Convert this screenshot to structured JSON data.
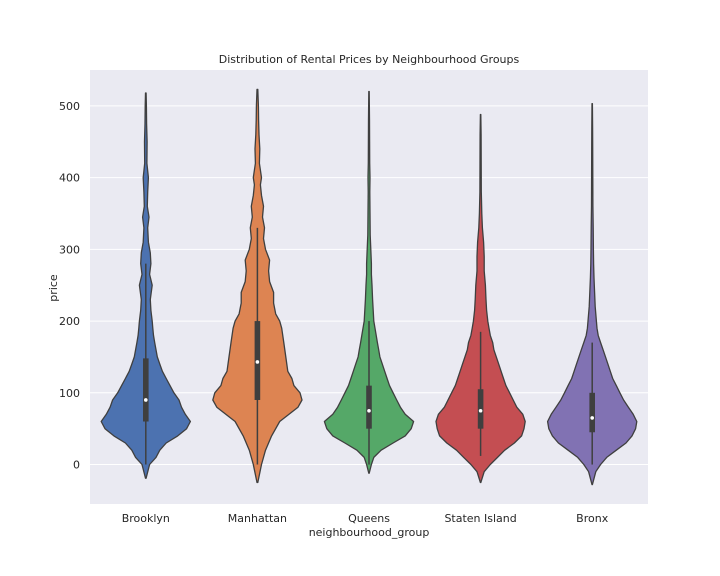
{
  "chart_data": {
    "type": "violin",
    "title": "Distribution of Rental Prices by Neighbourhood Groups",
    "xlabel": "neighbourhood_group",
    "ylabel": "price",
    "ylim": [
      -55,
      550
    ],
    "yticks": [
      0,
      100,
      200,
      300,
      400,
      500
    ],
    "grid": true,
    "categories": [
      "Brooklyn",
      "Manhattan",
      "Queens",
      "Staten Island",
      "Bronx"
    ],
    "colors": [
      "#4c72b0",
      "#dd8452",
      "#55a868",
      "#c44e52",
      "#8172b3"
    ],
    "violins": [
      {
        "name": "Brooklyn",
        "min": -19,
        "max": 518,
        "q1": 60,
        "median": 90,
        "q3": 148,
        "whisker_low": 0,
        "whisker_high": 280,
        "density": [
          [
            -19,
            0.2
          ],
          [
            0,
            3
          ],
          [
            10,
            8
          ],
          [
            20,
            11
          ],
          [
            30,
            16
          ],
          [
            40,
            25
          ],
          [
            50,
            32
          ],
          [
            60,
            35
          ],
          [
            70,
            31
          ],
          [
            80,
            28
          ],
          [
            90,
            26
          ],
          [
            100,
            22
          ],
          [
            110,
            19
          ],
          [
            120,
            16
          ],
          [
            130,
            13
          ],
          [
            140,
            11
          ],
          [
            150,
            9
          ],
          [
            160,
            8
          ],
          [
            170,
            7
          ],
          [
            180,
            6
          ],
          [
            190,
            5.5
          ],
          [
            200,
            5
          ],
          [
            215,
            4
          ],
          [
            230,
            3.5
          ],
          [
            250,
            5
          ],
          [
            265,
            3
          ],
          [
            280,
            4
          ],
          [
            295,
            3.5
          ],
          [
            310,
            2
          ],
          [
            330,
            1.5
          ],
          [
            345,
            2.5
          ],
          [
            360,
            1.2
          ],
          [
            380,
            1.5
          ],
          [
            400,
            2
          ],
          [
            420,
            0.9
          ],
          [
            450,
            1
          ],
          [
            475,
            0.6
          ],
          [
            500,
            0.5
          ],
          [
            518,
            0.2
          ]
        ]
      },
      {
        "name": "Manhattan",
        "min": -25,
        "max": 523,
        "q1": 90,
        "median": 143,
        "q3": 200,
        "whisker_low": 0,
        "whisker_high": 330,
        "density": [
          [
            -25,
            0.2
          ],
          [
            0,
            2
          ],
          [
            20,
            4
          ],
          [
            40,
            7
          ],
          [
            60,
            11
          ],
          [
            80,
            20
          ],
          [
            90,
            22
          ],
          [
            100,
            21
          ],
          [
            110,
            18
          ],
          [
            120,
            17
          ],
          [
            130,
            15
          ],
          [
            150,
            14
          ],
          [
            170,
            13
          ],
          [
            190,
            12
          ],
          [
            200,
            11
          ],
          [
            210,
            9
          ],
          [
            225,
            8
          ],
          [
            240,
            8
          ],
          [
            255,
            6
          ],
          [
            270,
            5.5
          ],
          [
            285,
            6
          ],
          [
            300,
            4
          ],
          [
            315,
            3
          ],
          [
            330,
            3.5
          ],
          [
            345,
            2.5
          ],
          [
            360,
            3
          ],
          [
            375,
            2
          ],
          [
            390,
            1.5
          ],
          [
            400,
            2
          ],
          [
            420,
            1
          ],
          [
            440,
            1.2
          ],
          [
            460,
            0.8
          ],
          [
            480,
            0.6
          ],
          [
            500,
            0.5
          ],
          [
            523,
            0.2
          ]
        ]
      },
      {
        "name": "Queens",
        "min": -12,
        "max": 520,
        "q1": 50,
        "median": 75,
        "q3": 110,
        "whisker_low": 0,
        "whisker_high": 200,
        "density": [
          [
            -12,
            0.2
          ],
          [
            0,
            2
          ],
          [
            10,
            4
          ],
          [
            20,
            10
          ],
          [
            30,
            20
          ],
          [
            40,
            30
          ],
          [
            50,
            35
          ],
          [
            60,
            37
          ],
          [
            70,
            30
          ],
          [
            80,
            26
          ],
          [
            90,
            23
          ],
          [
            100,
            20
          ],
          [
            110,
            17
          ],
          [
            120,
            15
          ],
          [
            130,
            13
          ],
          [
            140,
            11
          ],
          [
            150,
            9
          ],
          [
            160,
            8
          ],
          [
            170,
            7
          ],
          [
            180,
            6
          ],
          [
            190,
            5
          ],
          [
            200,
            4
          ],
          [
            215,
            3.5
          ],
          [
            230,
            3
          ],
          [
            250,
            2.5
          ],
          [
            265,
            2
          ],
          [
            280,
            2
          ],
          [
            300,
            1.5
          ],
          [
            320,
            1
          ],
          [
            350,
            0.8
          ],
          [
            380,
            0.7
          ],
          [
            400,
            0.8
          ],
          [
            420,
            0.6
          ],
          [
            450,
            0.5
          ],
          [
            480,
            0.4
          ],
          [
            520,
            0.2
          ]
        ]
      },
      {
        "name": "Staten Island",
        "min": -25,
        "max": 488,
        "q1": 50,
        "median": 75,
        "q3": 105,
        "whisker_low": 12,
        "whisker_high": 185,
        "density": [
          [
            -25,
            0.2
          ],
          [
            -10,
            3
          ],
          [
            0,
            8
          ],
          [
            10,
            14
          ],
          [
            20,
            20
          ],
          [
            30,
            28
          ],
          [
            40,
            34
          ],
          [
            50,
            36
          ],
          [
            60,
            37
          ],
          [
            70,
            35
          ],
          [
            80,
            30
          ],
          [
            90,
            27
          ],
          [
            100,
            24
          ],
          [
            110,
            21
          ],
          [
            120,
            19
          ],
          [
            130,
            17
          ],
          [
            140,
            15
          ],
          [
            150,
            13
          ],
          [
            160,
            11
          ],
          [
            170,
            10
          ],
          [
            180,
            8
          ],
          [
            190,
            7
          ],
          [
            200,
            6
          ],
          [
            215,
            5
          ],
          [
            230,
            4.5
          ],
          [
            250,
            4
          ],
          [
            270,
            3
          ],
          [
            290,
            3
          ],
          [
            310,
            2.5
          ],
          [
            330,
            1.5
          ],
          [
            350,
            1
          ],
          [
            380,
            0.6
          ],
          [
            420,
            0.5
          ],
          [
            460,
            0.4
          ],
          [
            488,
            0.2
          ]
        ]
      },
      {
        "name": "Bronx",
        "min": -28,
        "max": 503,
        "q1": 45,
        "median": 65,
        "q3": 100,
        "whisker_low": 0,
        "whisker_high": 170,
        "density": [
          [
            -28,
            0.2
          ],
          [
            -10,
            3
          ],
          [
            0,
            7
          ],
          [
            10,
            12
          ],
          [
            20,
            20
          ],
          [
            30,
            28
          ],
          [
            40,
            33
          ],
          [
            50,
            36
          ],
          [
            60,
            37
          ],
          [
            70,
            34
          ],
          [
            80,
            30
          ],
          [
            90,
            26
          ],
          [
            100,
            23
          ],
          [
            110,
            20
          ],
          [
            120,
            17
          ],
          [
            130,
            15
          ],
          [
            140,
            13
          ],
          [
            150,
            11
          ],
          [
            160,
            9
          ],
          [
            170,
            7
          ],
          [
            180,
            5
          ],
          [
            190,
            4
          ],
          [
            200,
            3.5
          ],
          [
            220,
            2.5
          ],
          [
            240,
            2
          ],
          [
            260,
            1.5
          ],
          [
            280,
            1.2
          ],
          [
            300,
            1
          ],
          [
            330,
            0.8
          ],
          [
            360,
            0.6
          ],
          [
            400,
            0.5
          ],
          [
            440,
            0.4
          ],
          [
            470,
            0.3
          ],
          [
            503,
            0.2
          ]
        ]
      }
    ]
  }
}
